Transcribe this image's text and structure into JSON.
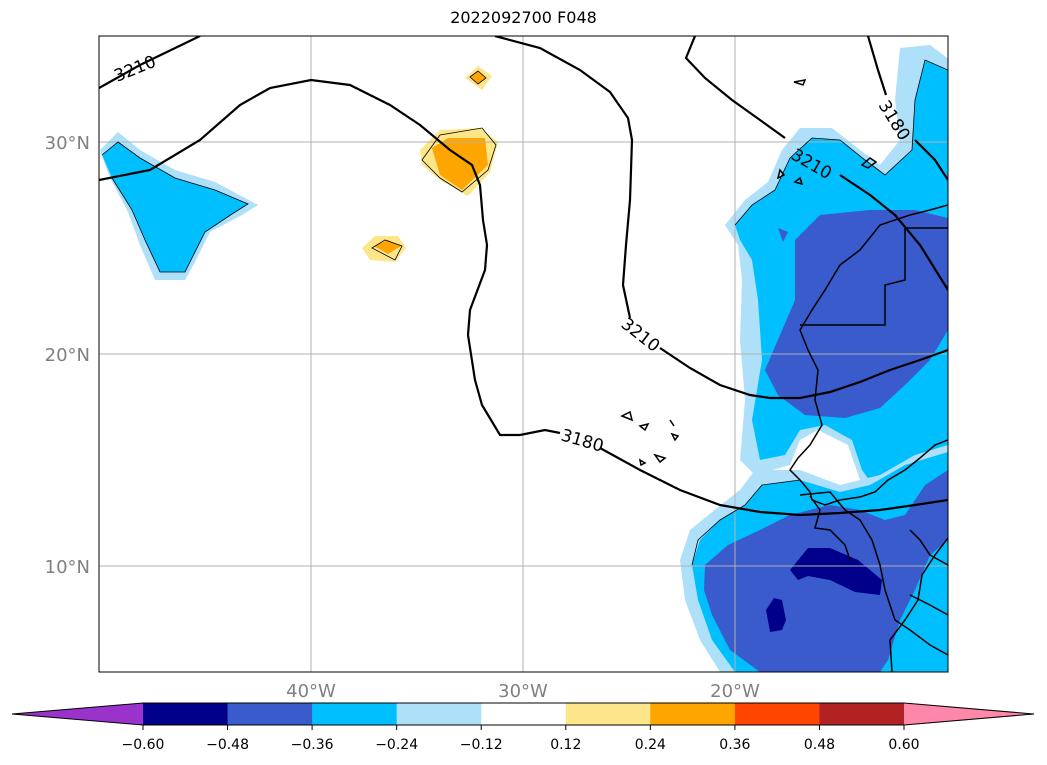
{
  "title": "2022092700 F048",
  "map": {
    "lat_labels": [
      "30°N",
      "20°N",
      "10°N"
    ],
    "lon_labels": [
      "40°W",
      "30°W",
      "20°W"
    ],
    "contour_labels": [
      "3210",
      "3210",
      "3210",
      "3180",
      "3180"
    ]
  },
  "colorbar": {
    "colors": [
      "#9933cc",
      "#00008b",
      "#3a5bcc",
      "#00bfff",
      "#aee0fa",
      "#ffffff",
      "#fde68a",
      "#ffa500",
      "#ff4500",
      "#b22222",
      "#ff88aa"
    ],
    "tick_labels": [
      "−0.60",
      "−0.48",
      "−0.36",
      "−0.24",
      "−0.12",
      "0.12",
      "0.24",
      "0.36",
      "0.48",
      "0.60"
    ]
  }
}
